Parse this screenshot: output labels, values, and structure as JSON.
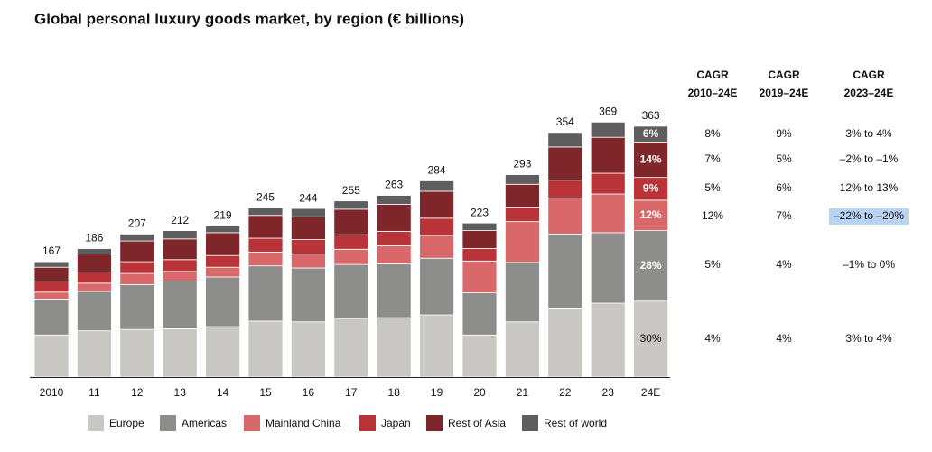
{
  "chart_data": {
    "type": "stacked_bar",
    "title": "Global personal luxury goods market, by region (€ billions)",
    "categories": [
      "2010",
      "11",
      "12",
      "13",
      "14",
      "15",
      "16",
      "17",
      "18",
      "19",
      "20",
      "21",
      "22",
      "23",
      "24E"
    ],
    "totals": [
      167,
      186,
      207,
      212,
      219,
      245,
      244,
      255,
      263,
      284,
      223,
      293,
      354,
      369,
      363
    ],
    "series": [
      {
        "name": "Europe",
        "color": "#c9c7c4",
        "values": [
          61,
          67,
          69,
          70,
          73,
          81,
          80,
          85,
          86,
          90,
          61,
          80,
          100,
          107,
          110
        ],
        "last_label": "30%"
      },
      {
        "name": "Americas",
        "color": "#8d8d8b",
        "values": [
          52,
          57,
          65,
          69,
          72,
          80,
          78,
          78,
          78,
          82,
          61,
          86,
          107,
          102,
          102
        ],
        "last_label": "28%"
      },
      {
        "name": "Mainland China",
        "color": "#d8686a",
        "values": [
          10,
          12,
          16,
          14,
          14,
          20,
          20,
          22,
          26,
          33,
          46,
          59,
          52,
          56,
          44
        ],
        "last_label": "12%"
      },
      {
        "name": "Japan",
        "color": "#b93438",
        "values": [
          16,
          16,
          17,
          17,
          17,
          20,
          21,
          21,
          21,
          25,
          18,
          21,
          26,
          30,
          33
        ],
        "last_label": "9%"
      },
      {
        "name": "Rest of Asia",
        "color": "#7e2629",
        "values": [
          20,
          26,
          30,
          30,
          33,
          33,
          33,
          37,
          39,
          39,
          26,
          33,
          48,
          52,
          51
        ],
        "last_label": "14%"
      },
      {
        "name": "Rest of world",
        "color": "#5e5e5e",
        "values": [
          8,
          8,
          10,
          12,
          10,
          11,
          12,
          12,
          13,
          15,
          11,
          14,
          21,
          22,
          23
        ],
        "last_label": "6%"
      }
    ],
    "cagr_table": {
      "headers": [
        [
          "CAGR",
          "2010–24E"
        ],
        [
          "CAGR",
          "2019–24E"
        ],
        [
          "CAGR",
          "2023–24E"
        ]
      ],
      "rows": [
        [
          "8%",
          "9%",
          "3% to 4%"
        ],
        [
          "7%",
          "5%",
          "–2% to –1%"
        ],
        [
          "5%",
          "6%",
          "12% to 13%"
        ],
        [
          "12%",
          "7%",
          "–22% to –20%"
        ],
        [
          "5%",
          "4%",
          "–1% to 0%"
        ],
        [
          "4%",
          "4%",
          "3% to 4%"
        ]
      ],
      "highlight": [
        3,
        2
      ]
    }
  }
}
